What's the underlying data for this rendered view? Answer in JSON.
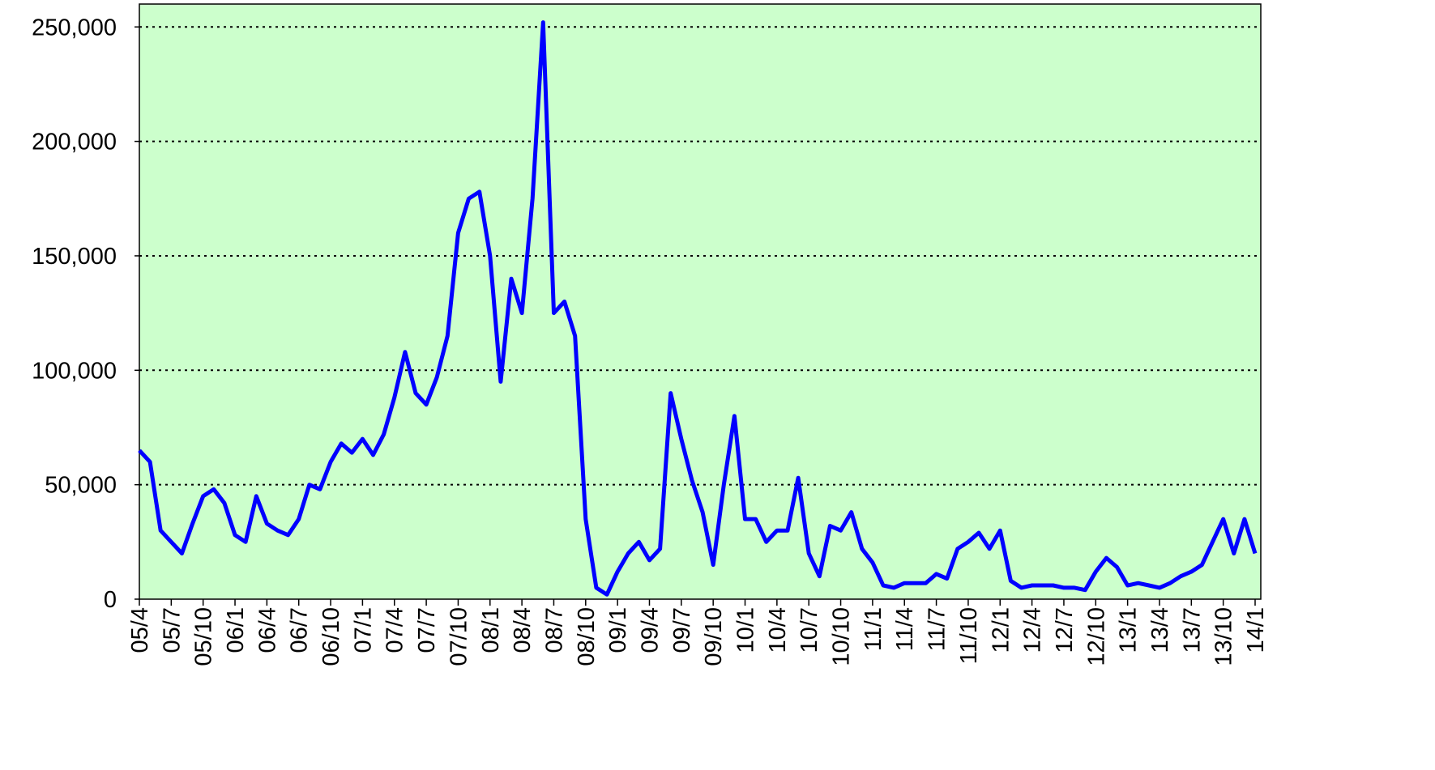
{
  "chart_data": {
    "type": "line",
    "categories": [
      "05/4",
      null,
      null,
      "05/7",
      null,
      null,
      "05/10",
      null,
      null,
      "06/1",
      null,
      null,
      "06/4",
      null,
      null,
      "06/7",
      null,
      null,
      "06/10",
      null,
      null,
      "07/1",
      null,
      null,
      "07/4",
      null,
      null,
      "07/7",
      null,
      null,
      "07/10",
      null,
      null,
      "08/1",
      null,
      null,
      "08/4",
      null,
      null,
      "08/7",
      null,
      null,
      "08/10",
      null,
      null,
      "09/1",
      null,
      null,
      "09/4",
      null,
      null,
      "09/7",
      null,
      null,
      "09/10",
      null,
      null,
      "10/1",
      null,
      null,
      "10/4",
      null,
      null,
      "10/7",
      null,
      null,
      "10/10",
      null,
      null,
      "11/1",
      null,
      null,
      "11/4",
      null,
      null,
      "11/7",
      null,
      null,
      "11/10",
      null,
      null,
      "12/1",
      null,
      null,
      "12/4",
      null,
      null,
      "12/7",
      null,
      null,
      "12/10",
      null,
      null,
      "13/1",
      null,
      null,
      "13/4",
      null,
      null,
      "13/7",
      null,
      null,
      "13/10",
      null,
      null,
      "14/1"
    ],
    "values": [
      65000,
      60000,
      30000,
      25000,
      20000,
      33000,
      45000,
      48000,
      42000,
      28000,
      25000,
      45000,
      33000,
      30000,
      28000,
      35000,
      50000,
      48000,
      60000,
      68000,
      64000,
      70000,
      63000,
      72000,
      88000,
      108000,
      90000,
      85000,
      97000,
      115000,
      160000,
      175000,
      178000,
      150000,
      95000,
      140000,
      125000,
      175000,
      252000,
      125000,
      130000,
      115000,
      35000,
      5000,
      2000,
      12000,
      20000,
      25000,
      17000,
      22000,
      90000,
      70000,
      52000,
      38000,
      15000,
      50000,
      80000,
      35000,
      35000,
      25000,
      30000,
      30000,
      53000,
      20000,
      10000,
      32000,
      30000,
      38000,
      22000,
      16000,
      6000,
      5000,
      7000,
      7000,
      7000,
      11000,
      9000,
      22000,
      25000,
      29000,
      22000,
      30000,
      8000,
      5000,
      6000,
      6000,
      6000,
      5000,
      5000,
      4000,
      12000,
      18000,
      14000,
      6000,
      7000,
      6000,
      5000,
      7000,
      10000,
      12000,
      15000,
      25000,
      35000,
      20000,
      35000,
      20000
    ],
    "color": "#0000ff",
    "ylim": [
      0,
      260000
    ],
    "yticks": [
      0,
      {
        "value": 50000,
        "label": "50,000"
      },
      {
        "value": 100000,
        "label": "100,000"
      },
      {
        "value": 150000,
        "label": "150,000"
      },
      {
        "value": 200000,
        "label": "200,000"
      },
      {
        "value": 250000,
        "label": "250,000"
      }
    ],
    "grid": true,
    "background": "#ccffcc"
  }
}
